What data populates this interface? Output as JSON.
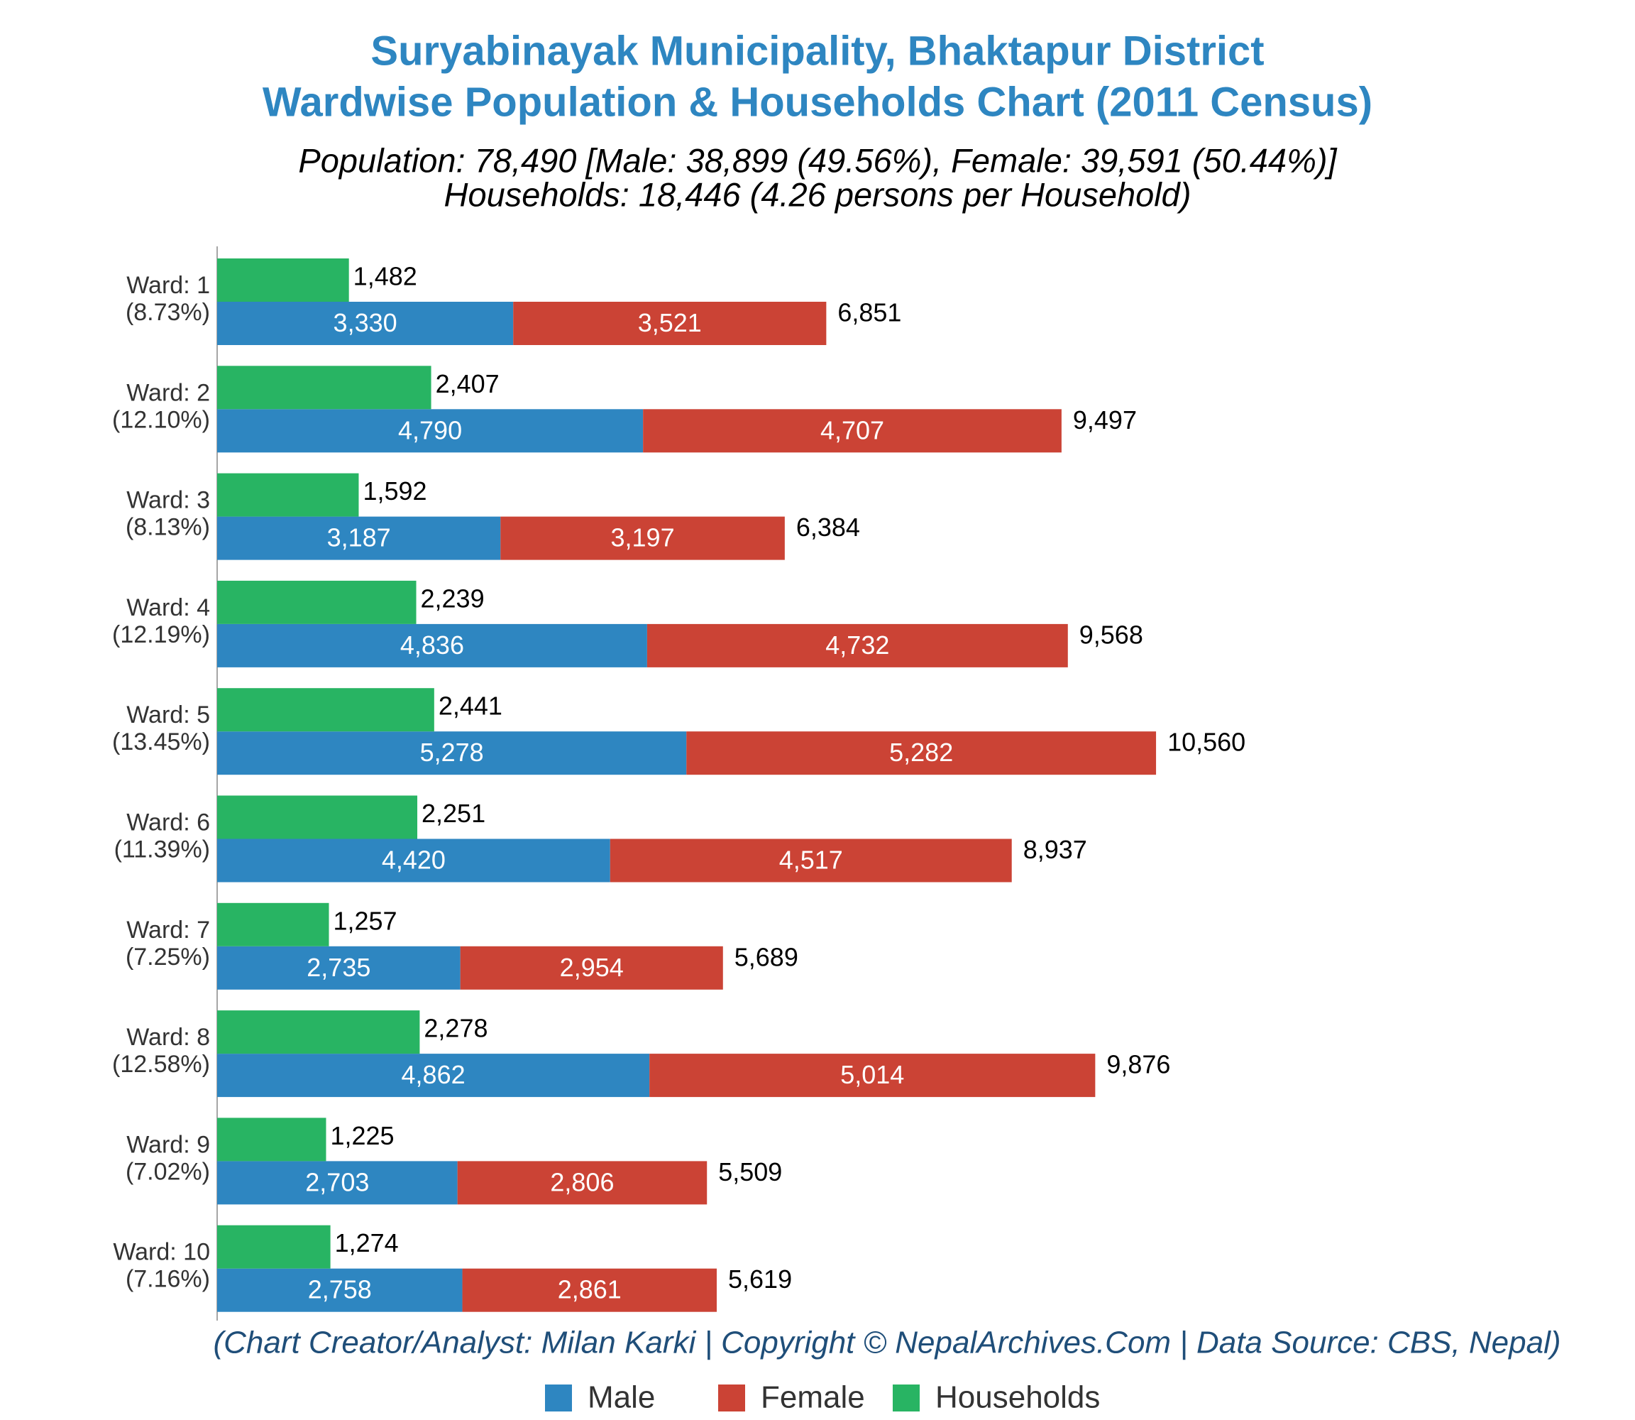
{
  "chart_data": {
    "type": "stacked-grouped-hbar",
    "title": [
      "Suryabinayak Municipality, Bhaktapur District",
      "Wardwise Population & Households Chart (2011 Census)"
    ],
    "subtitle": [
      "Population: 78,490 [Male: 38,899 (49.56%), Female: 39,591 (50.44%)]",
      "Households: 18,446 (4.26 persons per Household)"
    ],
    "footer": "(Chart Creator/Analyst: Milan Karki | Copyright © NepalArchives.Com | Data Source: CBS, Nepal)",
    "categories": [
      "Ward: 1",
      "Ward: 2",
      "Ward: 3",
      "Ward: 4",
      "Ward: 5",
      "Ward: 6",
      "Ward: 7",
      "Ward: 8",
      "Ward: 9",
      "Ward: 10"
    ],
    "category_shares": [
      "(8.73%)",
      "(12.10%)",
      "(8.13%)",
      "(12.19%)",
      "(13.45%)",
      "(11.39%)",
      "(7.25%)",
      "(12.58%)",
      "(7.02%)",
      "(7.16%)"
    ],
    "series": [
      {
        "name": "Male",
        "color": "#2e86c1",
        "stack": "population",
        "values": [
          3330,
          4790,
          3187,
          4836,
          5278,
          4420,
          2735,
          4862,
          2703,
          2758
        ],
        "value_labels": [
          "3,330",
          "4,790",
          "3,187",
          "4,836",
          "5,278",
          "4,420",
          "2,735",
          "4,862",
          "2,703",
          "2,758"
        ]
      },
      {
        "name": "Female",
        "color": "#cb4335",
        "stack": "population",
        "values": [
          3521,
          4707,
          3197,
          4732,
          5282,
          4517,
          2954,
          5014,
          2806,
          2861
        ],
        "value_labels": [
          "3,521",
          "4,707",
          "3,197",
          "4,732",
          "5,282",
          "4,517",
          "2,954",
          "5,014",
          "2,806",
          "2,861"
        ]
      },
      {
        "name": "Households",
        "color": "#28b463",
        "stack": "households",
        "values": [
          1482,
          2407,
          1592,
          2239,
          2441,
          2251,
          1257,
          2278,
          1225,
          1274
        ],
        "value_labels": [
          "1,482",
          "2,407",
          "1,592",
          "2,239",
          "2,441",
          "2,251",
          "1,257",
          "2,278",
          "1,225",
          "1,274"
        ]
      }
    ],
    "totals": {
      "values": [
        6851,
        9497,
        6384,
        9568,
        10560,
        8937,
        5689,
        9876,
        5509,
        5619
      ],
      "value_labels": [
        "6,851",
        "9,497",
        "6,384",
        "9,568",
        "10,560",
        "8,937",
        "5,689",
        "9,876",
        "5,509",
        "5,619"
      ]
    },
    "xlim": [
      0,
      15500
    ],
    "legend": "bottom"
  }
}
